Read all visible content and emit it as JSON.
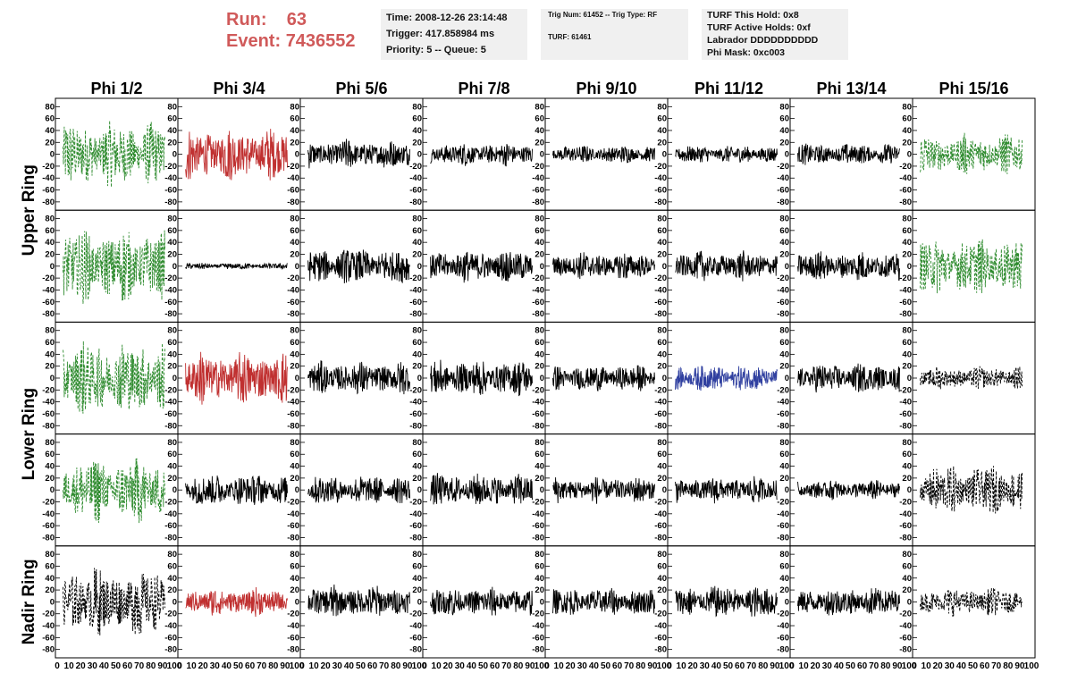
{
  "header": {
    "run_label": "Run:",
    "run_value": "63",
    "event_label": "Event:",
    "event_value": "7436552",
    "time_line": "Time: 2008-12-26 23:14:48",
    "trigger_line": "Trigger: 417.858984 ms",
    "priority_line": "Priority: 5 -- Queue: 5",
    "trig_num_line": "Trig Num: 61452 -- Trig Type: RF",
    "turf_line": "TURF: 61461",
    "turf_hold_line": "TURF This Hold: 0x8",
    "turf_active_line": "TURF Active Holds: 0xf",
    "labrador_line": "Labrador DDDDDDDDDD",
    "phi_mask_line": "Phi Mask: 0xc003"
  },
  "chart_data": {
    "type": "line",
    "columns": [
      "Phi 1/2",
      "Phi 3/4",
      "Phi 5/6",
      "Phi 7/8",
      "Phi 9/10",
      "Phi 11/12",
      "Phi 13/14",
      "Phi 15/16"
    ],
    "row_labels": [
      "Upper Ring",
      "Lower Ring",
      "Nadir Ring"
    ],
    "xlim": [
      0,
      100
    ],
    "x_ticks": [
      "0",
      "10",
      "20",
      "30",
      "40",
      "50",
      "60",
      "70",
      "80",
      "90",
      "100"
    ],
    "ylim": [
      -85,
      85
    ],
    "y_ticks": [
      "80",
      "60",
      "40",
      "20",
      "0",
      "-20",
      "-40",
      "-60",
      "-80"
    ],
    "colors": {
      "green": "#2e8b2e",
      "red": "#c03030",
      "blue": "#3040a0",
      "black": "#000000"
    },
    "panels": [
      [
        {
          "color": "green",
          "style": "dash",
          "amp": 40
        },
        {
          "color": "red",
          "style": "solid",
          "amp": 32
        },
        {
          "color": "black",
          "style": "solid",
          "amp": 18
        },
        {
          "color": "black",
          "style": "solid",
          "amp": 14
        },
        {
          "color": "black",
          "style": "solid",
          "amp": 11
        },
        {
          "color": "black",
          "style": "solid",
          "amp": 11
        },
        {
          "color": "black",
          "style": "solid",
          "amp": 13
        },
        {
          "color": "green",
          "style": "dash",
          "amp": 25
        }
      ],
      [
        {
          "color": "green",
          "style": "dash",
          "amp": 45
        },
        {
          "color": "black",
          "style": "solid",
          "amp": 4
        },
        {
          "color": "black",
          "style": "solid",
          "amp": 22
        },
        {
          "color": "black",
          "style": "solid",
          "amp": 20
        },
        {
          "color": "black",
          "style": "solid",
          "amp": 17
        },
        {
          "color": "black",
          "style": "solid",
          "amp": 18
        },
        {
          "color": "black",
          "style": "solid",
          "amp": 18
        },
        {
          "color": "green",
          "style": "dash",
          "amp": 35
        }
      ],
      [
        {
          "color": "green",
          "style": "dash",
          "amp": 45
        },
        {
          "color": "red",
          "style": "solid",
          "amp": 32
        },
        {
          "color": "black",
          "style": "solid",
          "amp": 20
        },
        {
          "color": "black",
          "style": "solid",
          "amp": 22
        },
        {
          "color": "black",
          "style": "solid",
          "amp": 16
        },
        {
          "color": "blue",
          "style": "solid",
          "amp": 16
        },
        {
          "color": "black",
          "style": "solid",
          "amp": 18
        },
        {
          "color": "black",
          "style": "dash",
          "amp": 14
        }
      ],
      [
        {
          "color": "green",
          "style": "dash",
          "amp": 40
        },
        {
          "color": "black",
          "style": "solid",
          "amp": 20
        },
        {
          "color": "black",
          "style": "solid",
          "amp": 18
        },
        {
          "color": "black",
          "style": "solid",
          "amp": 20
        },
        {
          "color": "black",
          "style": "solid",
          "amp": 16
        },
        {
          "color": "black",
          "style": "solid",
          "amp": 16
        },
        {
          "color": "black",
          "style": "solid",
          "amp": 12
        },
        {
          "color": "black",
          "style": "dash",
          "amp": 30
        }
      ],
      [
        {
          "color": "black",
          "style": "dash",
          "amp": 42
        },
        {
          "color": "red",
          "style": "solid",
          "amp": 17
        },
        {
          "color": "black",
          "style": "solid",
          "amp": 20
        },
        {
          "color": "black",
          "style": "solid",
          "amp": 18
        },
        {
          "color": "black",
          "style": "solid",
          "amp": 17
        },
        {
          "color": "black",
          "style": "solid",
          "amp": 20
        },
        {
          "color": "black",
          "style": "solid",
          "amp": 18
        },
        {
          "color": "black",
          "style": "dash",
          "amp": 17
        }
      ]
    ]
  }
}
